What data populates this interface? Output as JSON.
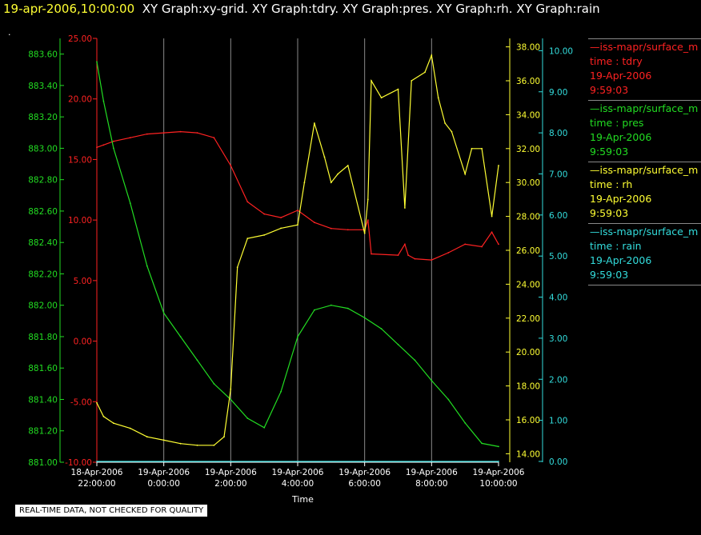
{
  "header": {
    "timestamp": "19-apr-2006,10:00:00",
    "graphs": "XY Graph:xy-grid.  XY Graph:tdry.  XY Graph:pres.  XY Graph:rh.  XY Graph:rain",
    "mark": "."
  },
  "notice": "REAL-TIME DATA, NOT CHECKED FOR QUALITY",
  "legend": [
    {
      "series": "—iss-mapr/surface_m",
      "line1": "time : tdry",
      "date": "19-Apr-2006",
      "time": "9:59:03",
      "color": "#ff2222"
    },
    {
      "series": "—iss-mapr/surface_m",
      "line1": "time : pres",
      "date": "19-Apr-2006",
      "time": "9:59:03",
      "color": "#22dd22"
    },
    {
      "series": "—iss-mapr/surface_m",
      "line1": "time : rh",
      "date": "19-Apr-2006",
      "time": "9:59:03",
      "color": "#ffff33"
    },
    {
      "series": "—iss-mapr/surface_m",
      "line1": "time : rain",
      "date": "19-Apr-2006",
      "time": "9:59:03",
      "color": "#33dddd"
    }
  ],
  "chart_data": {
    "type": "line",
    "xlabel": "Time",
    "x_ticks": [
      {
        "d": "18-Apr-2006",
        "t": "22:00:00",
        "h": 0
      },
      {
        "d": "19-Apr-2006",
        "t": "0:00:00",
        "h": 2
      },
      {
        "d": "19-Apr-2006",
        "t": "2:00:00",
        "h": 4
      },
      {
        "d": "19-Apr-2006",
        "t": "4:00:00",
        "h": 6
      },
      {
        "d": "19-Apr-2006",
        "t": "6:00:00",
        "h": 8
      },
      {
        "d": "19-Apr-2006",
        "t": "8:00:00",
        "h": 10
      },
      {
        "d": "19-Apr-2006",
        "t": "10:00:00",
        "h": 12
      }
    ],
    "grid": "vertical",
    "axes": {
      "tdry": {
        "ylim": [
          -10,
          25
        ],
        "ticks": [
          "-10.00",
          "-5.00",
          "0.00",
          "5.00",
          "10.00",
          "15.00",
          "20.00",
          "25.00"
        ],
        "color": "#ff2222"
      },
      "pres": {
        "ylim": [
          881.0,
          883.7
        ],
        "ticks": [
          "881.00",
          "881.20",
          "881.40",
          "881.60",
          "881.80",
          "882.00",
          "882.20",
          "882.40",
          "882.60",
          "882.80",
          "883.00",
          "883.20",
          "883.40",
          "883.60"
        ],
        "color": "#22dd22"
      },
      "rh": {
        "ylim": [
          13.5,
          38.5
        ],
        "ticks": [
          "14.00",
          "16.00",
          "18.00",
          "20.00",
          "22.00",
          "24.00",
          "26.00",
          "28.00",
          "30.00",
          "32.00",
          "34.00",
          "36.00",
          "38.00"
        ],
        "color": "#ffff33"
      },
      "rain": {
        "ylim": [
          -0.02,
          10.3
        ],
        "ticks": [
          "0.00",
          "1.00",
          "2.00",
          "3.00",
          "4.00",
          "5.00",
          "6.00",
          "7.00",
          "8.00",
          "9.00",
          "10.00"
        ],
        "color": "#33dddd"
      }
    },
    "series": [
      {
        "name": "time : tdry",
        "axis": "tdry",
        "color": "#ff2222",
        "x": [
          0,
          0.2,
          0.5,
          1,
          1.5,
          2,
          2.5,
          3,
          3.5,
          4,
          4.5,
          5,
          5.5,
          6,
          6.5,
          7,
          7.5,
          8,
          8.1,
          8.2,
          9,
          9.2,
          9.3,
          9.5,
          10,
          10.5,
          11,
          11.5,
          11.8,
          12
        ],
        "y": [
          16,
          16.2,
          16.5,
          16.8,
          17.1,
          17.2,
          17.3,
          17.2,
          16.8,
          14.5,
          11.5,
          10.5,
          10.2,
          10.8,
          9.8,
          9.3,
          9.2,
          9.2,
          10,
          7.2,
          7.1,
          8,
          7.1,
          6.8,
          6.7,
          7.3,
          8,
          7.8,
          9,
          8
        ]
      },
      {
        "name": "time : pres",
        "axis": "pres",
        "color": "#22dd22",
        "x": [
          0,
          0.2,
          0.5,
          1,
          1.5,
          2,
          2.5,
          3,
          3.5,
          4,
          4.5,
          5,
          5.5,
          6,
          6.5,
          7,
          7.5,
          8,
          8.5,
          9,
          9.5,
          10,
          10.5,
          11,
          11.5,
          12
        ],
        "y": [
          883.55,
          883.3,
          883.0,
          882.65,
          882.25,
          881.95,
          881.8,
          881.65,
          881.5,
          881.4,
          881.28,
          881.22,
          881.45,
          881.8,
          881.97,
          882.0,
          881.98,
          881.92,
          881.85,
          881.75,
          881.65,
          881.52,
          881.4,
          881.25,
          881.12,
          881.1
        ]
      },
      {
        "name": "time : rh",
        "axis": "rh",
        "color": "#ffff33",
        "x": [
          0,
          0.2,
          0.5,
          1,
          1.5,
          2,
          2.5,
          3,
          3.5,
          3.8,
          4,
          4.2,
          4.5,
          5,
          5.5,
          6,
          6.2,
          6.5,
          6.8,
          7,
          7.2,
          7.5,
          8,
          8.1,
          8.2,
          8.5,
          9,
          9.2,
          9.4,
          9.8,
          10,
          10.2,
          10.4,
          10.6,
          11,
          11.2,
          11.5,
          11.8,
          12
        ],
        "y": [
          17,
          16.2,
          15.8,
          15.5,
          15.0,
          14.8,
          14.6,
          14.5,
          14.5,
          15,
          17.8,
          25,
          26.7,
          26.9,
          27.3,
          27.5,
          30,
          33.5,
          31.5,
          30,
          30.5,
          31,
          27,
          29,
          36,
          35,
          35.5,
          28.5,
          36,
          36.5,
          37.5,
          35,
          33.5,
          33,
          30.5,
          32,
          32,
          28,
          31
        ]
      },
      {
        "name": "time : rain",
        "axis": "rain",
        "color": "#33dddd",
        "x": [
          0,
          12
        ],
        "y": [
          0,
          0
        ]
      }
    ]
  }
}
